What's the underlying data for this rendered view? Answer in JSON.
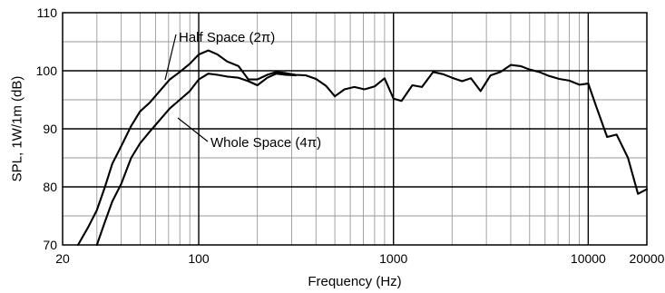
{
  "chart_data": {
    "type": "line",
    "title": "",
    "xlabel": "Frequency (Hz)",
    "ylabel": "SPL, 1W/1m (dB)",
    "xscale": "log",
    "xlim": [
      20,
      20000
    ],
    "ylim": [
      70,
      110
    ],
    "grid": true,
    "xticks": [
      {
        "value": 20,
        "label": "20"
      },
      {
        "value": 100,
        "label": "100"
      },
      {
        "value": 1000,
        "label": "1000"
      },
      {
        "value": 10000,
        "label": "10000"
      },
      {
        "value": 20000,
        "label": "20000"
      }
    ],
    "yticks": [
      {
        "value": 70,
        "label": "70"
      },
      {
        "value": 80,
        "label": "80"
      },
      {
        "value": 90,
        "label": "90"
      },
      {
        "value": 100,
        "label": "100"
      },
      {
        "value": 110,
        "label": "110"
      }
    ],
    "series": [
      {
        "name": "Half Space (2π)",
        "color": "#000000",
        "x": [
          24,
          27,
          30,
          33,
          36,
          40,
          45,
          50,
          56,
          63,
          71,
          80,
          90,
          100,
          112,
          125,
          140,
          160,
          180,
          200,
          225,
          250,
          280,
          315,
          355,
          400,
          450,
          500,
          560,
          630,
          710,
          800,
          900,
          1000,
          1100,
          1250,
          1400,
          1600,
          1800,
          2000,
          2250,
          2500,
          2800,
          3150,
          3550,
          4000,
          4500,
          5000,
          5600,
          6300,
          7100,
          8000,
          9000,
          10000,
          11000,
          12500,
          14000,
          16000,
          18000,
          20000
        ],
        "y": [
          70,
          73,
          76,
          80,
          84,
          87,
          90.5,
          93,
          94.5,
          96.5,
          98.5,
          99.8,
          101.2,
          102.8,
          103.5,
          102.8,
          101.6,
          100.8,
          98.5,
          98.5,
          99.3,
          99.8,
          99.6,
          99.3,
          99.2,
          98.6,
          97.4,
          95.6,
          96.8,
          97.2,
          96.8,
          97.3,
          98.7,
          95.2,
          94.8,
          97.5,
          97.2,
          99.8,
          99.4,
          98.8,
          98.2,
          98.7,
          96.5,
          99.2,
          99.8,
          101.0,
          100.8,
          100.2,
          99.8,
          99.1,
          98.6,
          98.3,
          97.6,
          97.8,
          93.8,
          88.6,
          89.0,
          85.0,
          78.8,
          79.6
        ]
      },
      {
        "name": "Whole Space (4π)",
        "color": "#000000",
        "x": [
          30,
          33,
          36,
          40,
          45,
          50,
          56,
          63,
          71,
          80,
          90,
          100,
          112,
          125,
          140,
          160,
          180,
          200,
          225,
          250,
          280,
          315
        ],
        "y": [
          70,
          74,
          77.5,
          80.5,
          85,
          87.5,
          89.5,
          91.5,
          93.5,
          95,
          96.5,
          98.5,
          99.5,
          99.3,
          99.0,
          98.8,
          98.2,
          97.5,
          98.8,
          99.5,
          99.3,
          99.2
        ]
      }
    ],
    "annotations": [
      {
        "text": "Half Space (2π)",
        "series": 0
      },
      {
        "text": "Whole Space (4π)",
        "series": 1
      }
    ]
  }
}
